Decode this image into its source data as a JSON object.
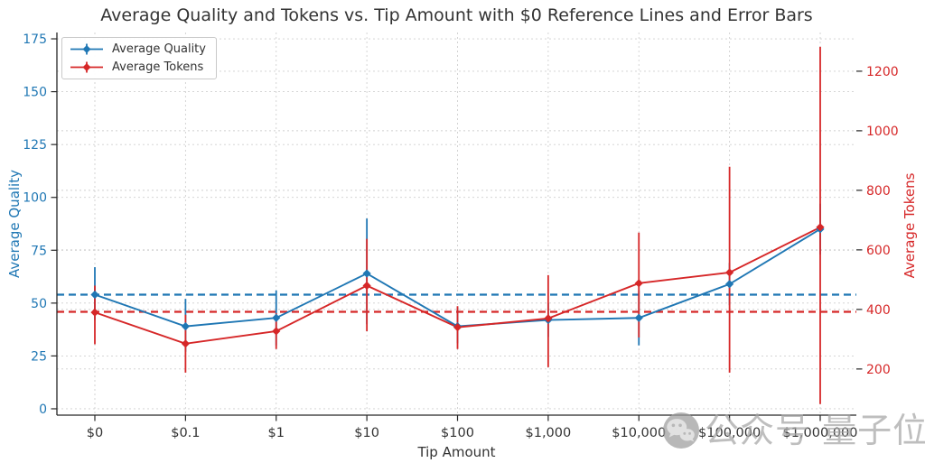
{
  "watermark": {
    "text": "公众号 量子位",
    "icon": "wechat-icon"
  },
  "chart_data": {
    "type": "line",
    "title": "Average Quality and Tokens vs. Tip Amount with $0 Reference Lines and Error Bars",
    "xlabel": "Tip Amount",
    "categories": [
      "$0",
      "$0.1",
      "$1",
      "$10",
      "$100",
      "$1,000",
      "$10,000",
      "$100,000",
      "$1,000,000"
    ],
    "series": [
      {
        "name": "Average Quality",
        "axis": "left",
        "color": "#1f77b4",
        "marker": "diamond",
        "values": [
          54,
          39,
          43,
          64,
          39,
          42,
          43,
          59,
          85
        ],
        "error_low": [
          42,
          27,
          30,
          40,
          31,
          34,
          30,
          49,
          73
        ],
        "error_high": [
          67,
          52,
          56,
          90,
          48,
          50,
          56,
          69,
          97
        ]
      },
      {
        "name": "Average Tokens",
        "axis": "right",
        "color": "#d62728",
        "marker": "diamond",
        "values": [
          390,
          285,
          327,
          480,
          340,
          370,
          488,
          524,
          676
        ],
        "error_low": [
          283,
          188,
          267,
          327,
          267,
          206,
          306,
          188,
          82
        ],
        "error_high": [
          480,
          382,
          387,
          637,
          411,
          515,
          658,
          879,
          1282
        ]
      }
    ],
    "reference_lines": [
      {
        "name": "quality-zero-reference",
        "axis": "left",
        "value": 54,
        "color": "#1f77b4",
        "style": "dashed"
      },
      {
        "name": "tokens-zero-reference",
        "axis": "right",
        "value": 392,
        "color": "#d62728",
        "style": "dashed"
      }
    ],
    "axes": {
      "left": {
        "label": "Average Quality",
        "color": "#1f77b4",
        "ticks": [
          0,
          25,
          50,
          75,
          100,
          125,
          150,
          175
        ],
        "range": [
          -3,
          178
        ]
      },
      "right": {
        "label": "Average Tokens",
        "color": "#d62728",
        "ticks": [
          200,
          400,
          600,
          800,
          1000,
          1200
        ],
        "range": [
          45,
          1330
        ]
      },
      "x": {
        "label": "Tip Amount"
      }
    },
    "legend": {
      "position": "upper-left",
      "entries": [
        "Average Quality",
        "Average Tokens"
      ]
    },
    "grid": true,
    "grid_color": "#cfcfcf",
    "text_color": "#333333"
  }
}
